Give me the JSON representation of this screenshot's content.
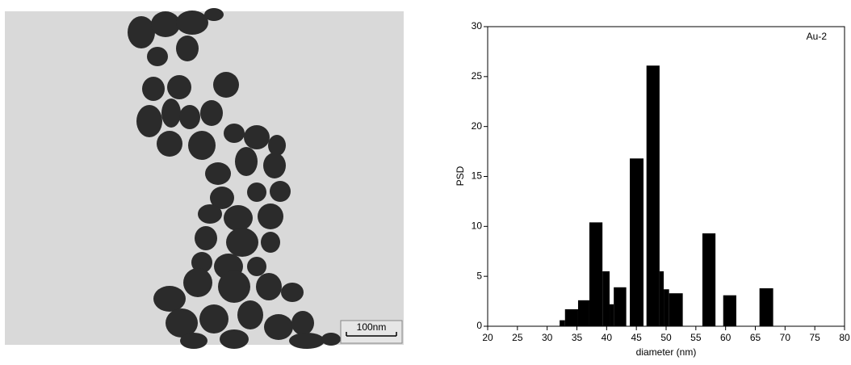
{
  "image": {
    "scale_bar": "100nm"
  },
  "chart_data": {
    "type": "histogram",
    "annotation": "Au-2",
    "xlabel": "diameter (nm)",
    "ylabel": "PSD",
    "bins": [
      32.1,
      33,
      35.2,
      37.1,
      39.3,
      40.5,
      41.2,
      43.3,
      43.9,
      46.2,
      46.7,
      48.9,
      49.6,
      50.5,
      52.8,
      56.1,
      58.3,
      59.6,
      61.8,
      65.7,
      68
    ],
    "values": [
      0.6,
      1.7,
      2.6,
      10.4,
      5.5,
      2.2,
      3.9,
      0,
      16.8,
      0,
      26.1,
      5.5,
      3.7,
      3.3,
      0,
      9.3,
      0,
      3.1,
      0,
      3.8
    ],
    "color": "#000000",
    "xlim": [
      20,
      80
    ],
    "xticks": [
      20,
      25,
      30,
      35,
      40,
      45,
      50,
      55,
      60,
      65,
      70,
      75,
      80
    ],
    "ylim": [
      0,
      30
    ],
    "yticks": [
      0,
      5,
      10,
      15,
      20,
      25,
      30
    ]
  }
}
